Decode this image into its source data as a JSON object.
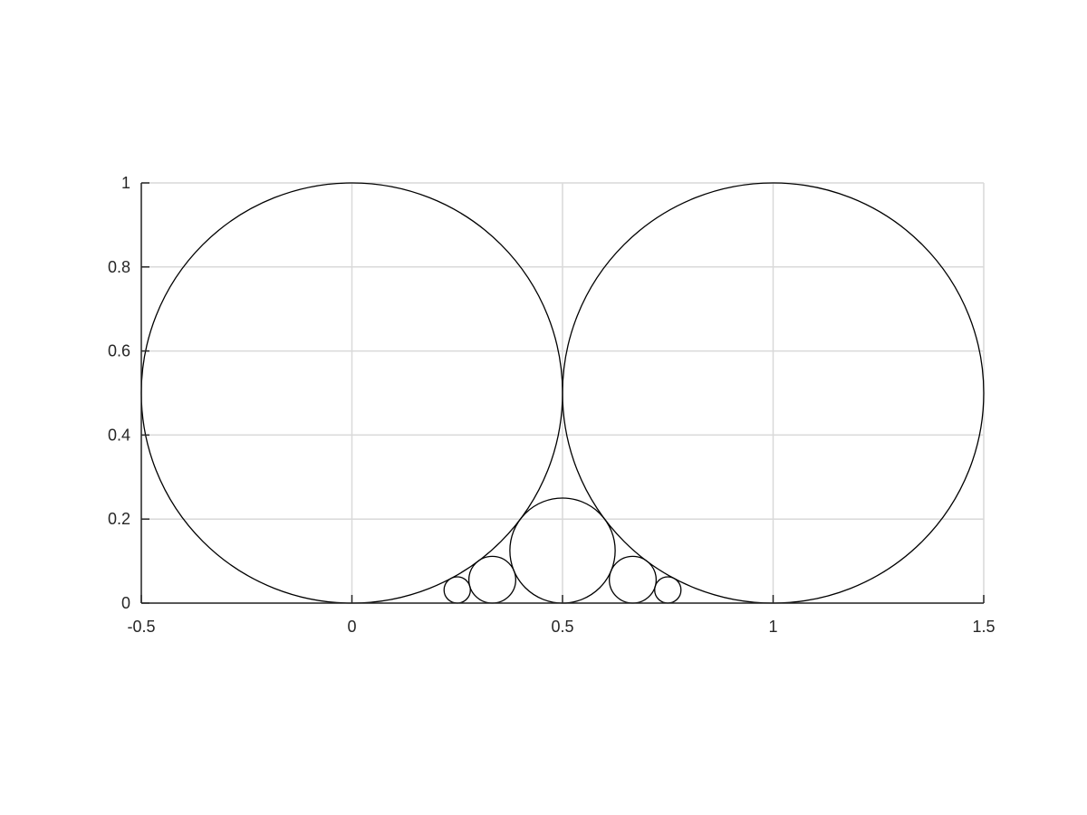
{
  "chart_data": {
    "type": "scatter",
    "title": "",
    "xlabel": "",
    "ylabel": "",
    "xlim": [
      -0.5,
      1.5
    ],
    "ylim": [
      0,
      1
    ],
    "xticks": [
      -0.5,
      0,
      0.5,
      1,
      1.5
    ],
    "xtick_labels": [
      "-0.5",
      "0",
      "0.5",
      "1",
      "1.5"
    ],
    "yticks": [
      0,
      0.2,
      0.4,
      0.6,
      0.8,
      1
    ],
    "ytick_labels": [
      "0",
      "0.2",
      "0.4",
      "0.6",
      "0.8",
      "1"
    ],
    "grid": true,
    "legend": "none",
    "colors": {
      "circle": "#000000",
      "grid": "#d9d9d9",
      "axis": "#262626"
    },
    "circles": [
      {
        "cx": 0,
        "cy": 0.5,
        "r": 0.5
      },
      {
        "cx": 1,
        "cy": 0.5,
        "r": 0.5
      },
      {
        "cx": 0.5,
        "cy": 0.125,
        "r": 0.125
      },
      {
        "cx": 0.3333,
        "cy": 0.0556,
        "r": 0.0556
      },
      {
        "cx": 0.6667,
        "cy": 0.0556,
        "r": 0.0556
      },
      {
        "cx": 0.25,
        "cy": 0.03125,
        "r": 0.03125
      },
      {
        "cx": 0.75,
        "cy": 0.03125,
        "r": 0.03125
      }
    ]
  }
}
